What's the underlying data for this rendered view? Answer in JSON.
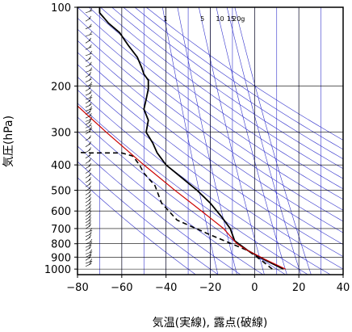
{
  "chart_data": {
    "type": "line",
    "xlabel": "気温(実線), 露点(破線)",
    "ylabel": "気圧(hPa)",
    "xlim": [
      -80,
      40
    ],
    "ylim": [
      1050,
      100
    ],
    "y_scale": "log",
    "x_ticks": [
      -80,
      -60,
      -40,
      -20,
      0,
      20,
      40
    ],
    "x_tick_labels": [
      "−80",
      "−60",
      "−40",
      "−20",
      "0",
      "20",
      "40"
    ],
    "y_ticks": [
      100,
      200,
      300,
      400,
      500,
      600,
      700,
      800,
      900,
      1000
    ],
    "y_tick_labels": [
      "100",
      "200",
      "300",
      "400",
      "500",
      "600",
      "700",
      "800",
      "900",
      "1000"
    ],
    "mixing_ratio_labels": [
      "1",
      "5",
      "10",
      "15",
      "20g"
    ],
    "colors": {
      "temperature": "#000000",
      "dewpoint": "#000000",
      "parcel": "#cc0000",
      "background_lines": "#3333cc",
      "grid": "#000000"
    },
    "series": [
      {
        "style": "solid",
        "points": [
          [
            13,
            1000
          ],
          [
            5,
            925
          ],
          [
            -3,
            850
          ],
          [
            -9,
            780
          ],
          [
            -11,
            700
          ],
          [
            -15,
            630
          ],
          [
            -20,
            560
          ],
          [
            -26,
            500
          ],
          [
            -34,
            440
          ],
          [
            -40,
            400
          ],
          [
            -44,
            360
          ],
          [
            -46,
            330
          ],
          [
            -49,
            300
          ],
          [
            -48,
            270
          ],
          [
            -50,
            245
          ],
          [
            -49,
            225
          ],
          [
            -48,
            205
          ],
          [
            -48,
            190
          ],
          [
            -50,
            180
          ],
          [
            -51,
            170
          ],
          [
            -53,
            155
          ],
          [
            -57,
            140
          ],
          [
            -61,
            125
          ],
          [
            -66,
            115
          ],
          [
            -70,
            105
          ],
          [
            -70,
            100
          ]
        ]
      },
      {
        "style": "dashed",
        "points": [
          [
            8,
            1000
          ],
          [
            3,
            925
          ],
          [
            -3,
            850
          ],
          [
            -20,
            740
          ],
          [
            -35,
            650
          ],
          [
            -42,
            560
          ],
          [
            -45,
            480
          ],
          [
            -50,
            430
          ],
          [
            -52,
            400
          ],
          [
            -55,
            370
          ],
          [
            -60,
            360
          ],
          [
            -74,
            360
          ],
          [
            -81,
            358
          ]
        ]
      },
      {
        "style": "solid-red",
        "points": [
          [
            14,
            1000
          ],
          [
            5,
            920
          ],
          [
            -3,
            850
          ],
          [
            -8,
            800
          ],
          [
            -14,
            700
          ],
          [
            -24,
            600
          ],
          [
            -36,
            500
          ],
          [
            -50,
            400
          ],
          [
            -67,
            300
          ],
          [
            -82,
            230
          ]
        ]
      }
    ],
    "grid": true,
    "wind_barbs": true
  }
}
